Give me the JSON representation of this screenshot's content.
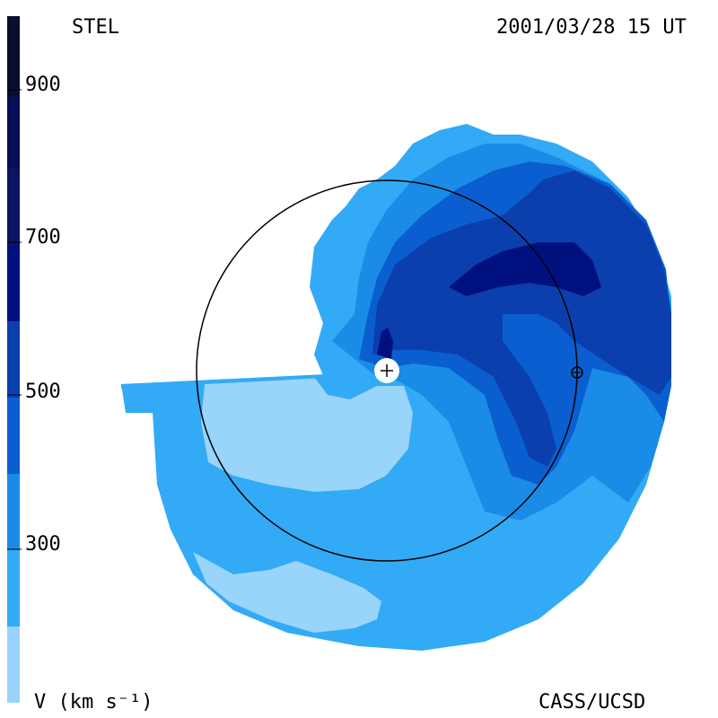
{
  "header": {
    "left": "STEL",
    "right": "2001/03/28 15 UT"
  },
  "footer": {
    "left": "V (km s⁻¹)",
    "right": "CASS/UCSD"
  },
  "colorbar": {
    "ticks": [
      "900",
      "700",
      "500",
      "300"
    ],
    "colors": [
      "#0a0d2e",
      "#0b1463",
      "#00107f",
      "#0a3fad",
      "#0066cc",
      "#1a8be6",
      "#33aaf5",
      "#99d4fa"
    ]
  },
  "palette": {
    "lightest": "#99d4fa",
    "light": "#33aaf5",
    "mid": "#1a8be6",
    "darker": "#0a5ed0",
    "dark": "#0a3fad",
    "darkest": "#00107f"
  }
}
